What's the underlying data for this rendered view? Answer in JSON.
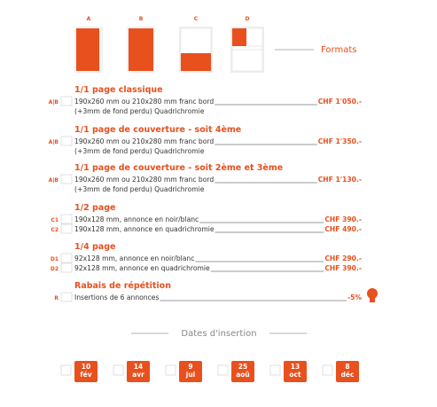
{
  "formats": {
    "title": "Formats",
    "items": [
      "A",
      "B",
      "C",
      "D"
    ]
  },
  "sections": [
    {
      "title": "1/1 page classique",
      "rows": [
        {
          "code": "A|B",
          "lines": [
            "190x260 mm ou 210x280 mm franc bord",
            "(+3mm de fond perdu) Quadrichromie"
          ],
          "price": "CHF 1'050.-"
        }
      ]
    },
    {
      "title": "1/1 page de couverture - soit 4ème",
      "rows": [
        {
          "code": "A|B",
          "lines": [
            "190x260 mm ou 210x280 mm franc bord",
            "(+3mm de fond perdu) Quadrichromie"
          ],
          "price": "CHF 1'350.-"
        }
      ]
    },
    {
      "title": "1/1 page de couverture - soit 2ème et 3ème",
      "rows": [
        {
          "code": "A|B",
          "lines": [
            "190x260 mm ou 210x280 mm franc bord",
            "(+3mm de fond perdu) Quadrichromie"
          ],
          "price": "CHF 1'130.-"
        }
      ]
    },
    {
      "title": "1/2 page",
      "rows": [
        {
          "code": "C1",
          "lines": [
            "190x128 mm, annonce en noir/blanc"
          ],
          "price": "CHF 390.-"
        },
        {
          "code": "C2",
          "lines": [
            "190x128 mm, annonce en quadrichromie"
          ],
          "price": "CHF 490.-"
        }
      ]
    },
    {
      "title": "1/4 page",
      "rows": [
        {
          "code": "D1",
          "lines": [
            "92x128 mm, annonce en noir/blanc"
          ],
          "price": "CHF 290.-"
        },
        {
          "code": "D2",
          "lines": [
            "92x128 mm, annonce en quadrichromie"
          ],
          "price": "CHF 390.-"
        }
      ]
    },
    {
      "title": "Rabais de répétition",
      "rows": [
        {
          "code": "R",
          "lines": [
            "Insertions de 6 annonces"
          ],
          "price": "-5%"
        }
      ]
    }
  ],
  "dates": {
    "title": "Dates d'insertion",
    "items": [
      {
        "day": "10",
        "month": "fév"
      },
      {
        "day": "14",
        "month": "avr"
      },
      {
        "day": "9",
        "month": "jui"
      },
      {
        "day": "25",
        "month": "aoû"
      },
      {
        "day": "13",
        "month": "oct"
      },
      {
        "day": "8",
        "month": "déc"
      }
    ]
  }
}
